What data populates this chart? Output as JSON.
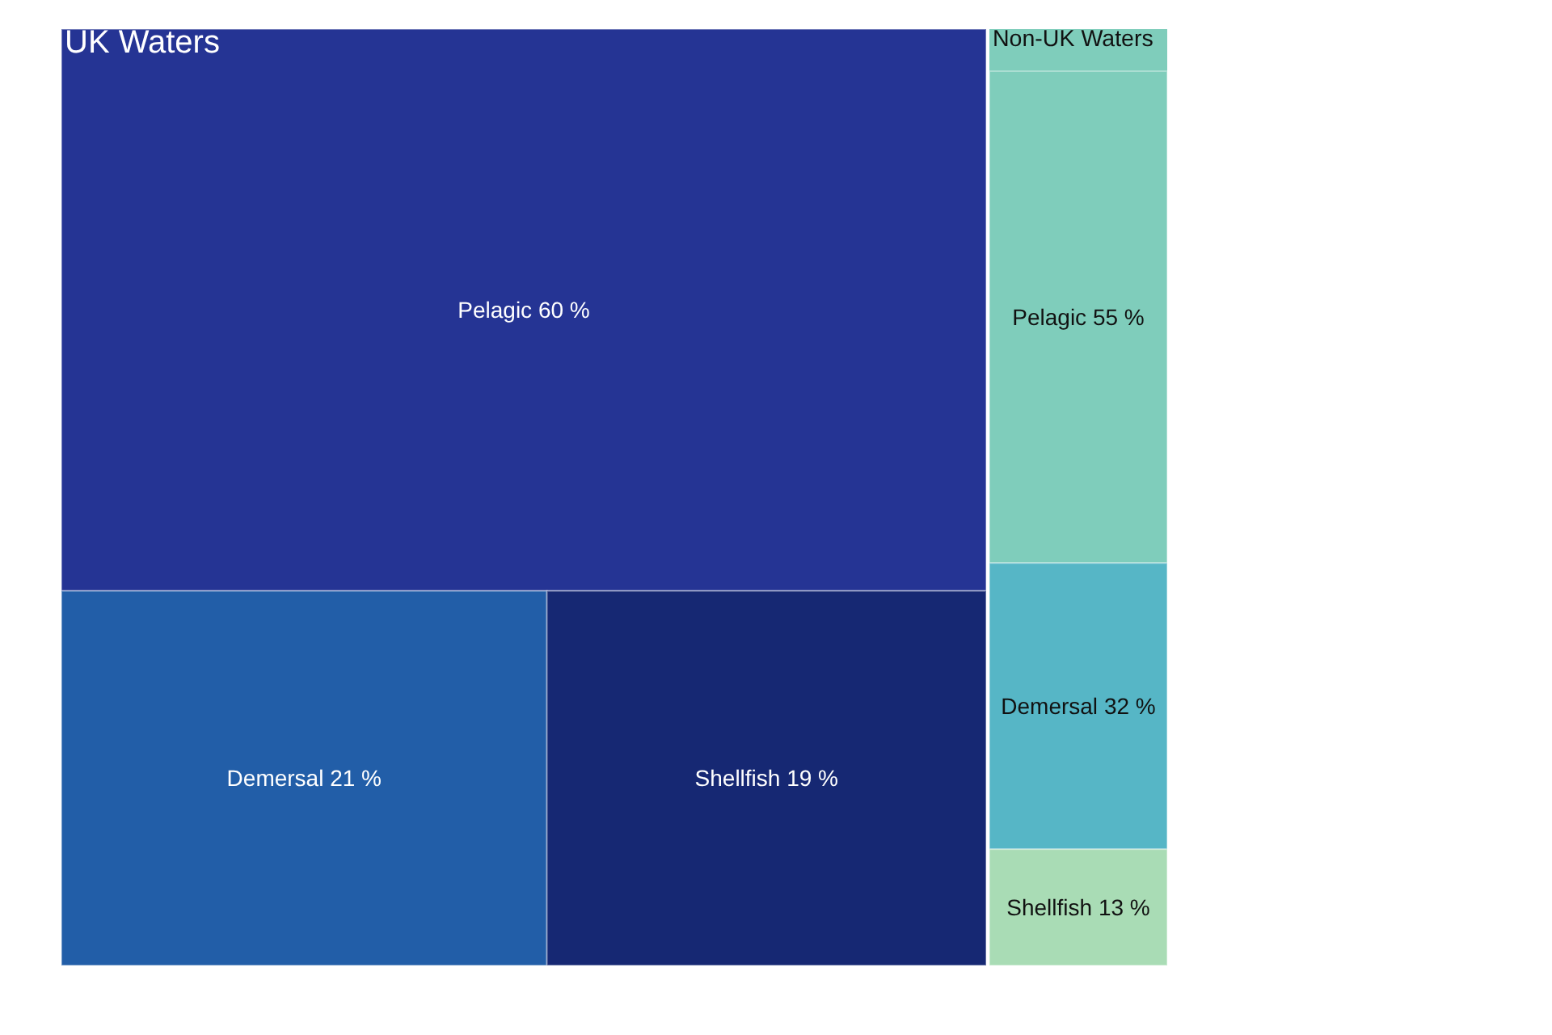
{
  "chart_data": [
    {
      "type": "other",
      "title": "UK Waters",
      "color": "#253494",
      "categories": [
        "Pelagic",
        "Demersal",
        "Shellfish"
      ],
      "values": [
        60,
        21,
        19
      ],
      "value_labels": [
        "60 %",
        "21 %",
        "19 %"
      ],
      "colors": [
        "#253494",
        "#225ea8",
        "#162873"
      ]
    },
    {
      "type": "other",
      "title": "Non-UK Waters",
      "color": "#7fcdbb",
      "categories": [
        "Pelagic",
        "Demersal",
        "Shellfish"
      ],
      "values": [
        55,
        32,
        13
      ],
      "value_labels": [
        "55 %",
        "32 %",
        "13 %"
      ],
      "colors": [
        "#7fcdbb",
        "#56b6c6",
        "#a9dcb5"
      ]
    }
  ]
}
